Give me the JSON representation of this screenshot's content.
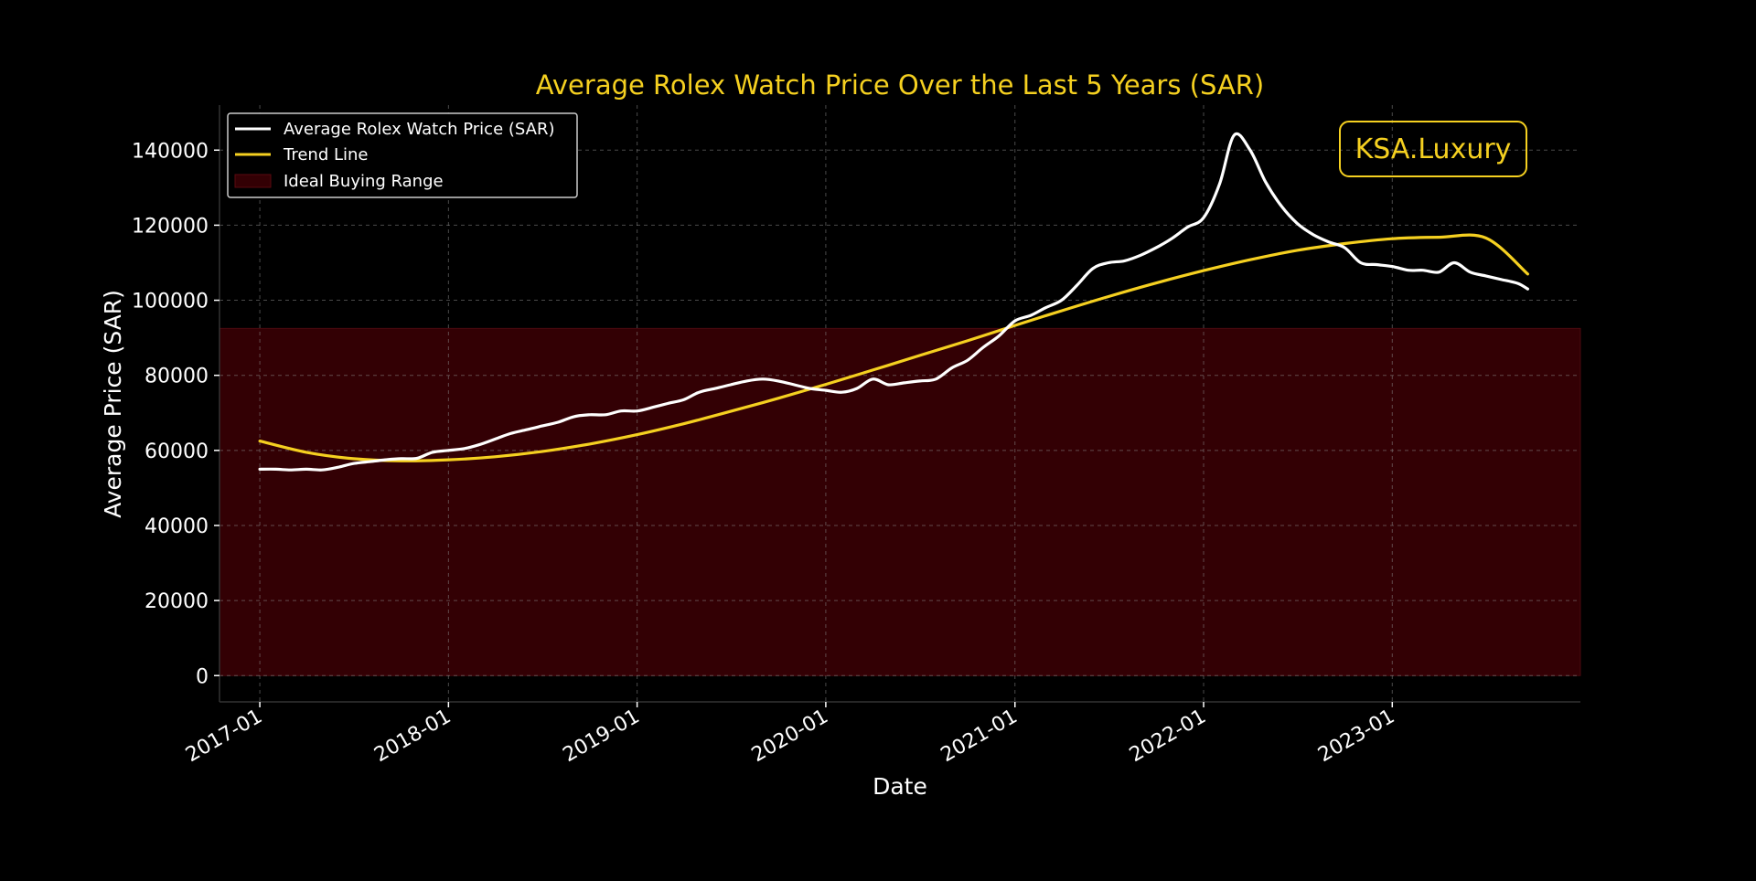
{
  "chart_data": {
    "type": "line",
    "title": "Average Rolex Watch Price Over the Last 5 Years (SAR)",
    "xlabel": "Date",
    "ylabel": "Average Price (SAR)",
    "xlim": [
      "2016-10-15",
      "2023-12-31"
    ],
    "ylim": [
      -7000,
      152000
    ],
    "x_ticks": [
      "2017-01",
      "2018-01",
      "2019-01",
      "2020-01",
      "2021-01",
      "2022-01",
      "2023-01"
    ],
    "y_ticks": [
      0,
      20000,
      40000,
      60000,
      80000,
      100000,
      120000,
      140000
    ],
    "grid": true,
    "legend_position": "top-left",
    "watermark": "KSA.Luxury",
    "colors": {
      "background": "#000000",
      "title": "#f5d020",
      "price_line": "#ffffff",
      "trend_line": "#f5d020",
      "range_fill": "#330004",
      "text": "#ffffff",
      "grid": "#888888"
    },
    "ideal_buying_range": {
      "name": "Ideal Buying Range",
      "ymin": 0,
      "ymax": 92500
    },
    "series": [
      {
        "name": "Average Rolex Watch Price (SAR)",
        "role": "price",
        "points": [
          [
            "2017-01-01",
            55000
          ],
          [
            "2017-02-01",
            55000
          ],
          [
            "2017-03-01",
            54800
          ],
          [
            "2017-04-01",
            55000
          ],
          [
            "2017-05-01",
            54800
          ],
          [
            "2017-06-01",
            55500
          ],
          [
            "2017-07-01",
            56500
          ],
          [
            "2017-08-01",
            57000
          ],
          [
            "2017-09-01",
            57500
          ],
          [
            "2017-10-01",
            57800
          ],
          [
            "2017-11-01",
            57900
          ],
          [
            "2017-12-01",
            59500
          ],
          [
            "2018-01-01",
            60000
          ],
          [
            "2018-02-01",
            60500
          ],
          [
            "2018-03-01",
            61500
          ],
          [
            "2018-04-01",
            63000
          ],
          [
            "2018-05-01",
            64500
          ],
          [
            "2018-06-01",
            65500
          ],
          [
            "2018-07-01",
            66500
          ],
          [
            "2018-08-01",
            67500
          ],
          [
            "2018-09-01",
            69000
          ],
          [
            "2018-10-01",
            69500
          ],
          [
            "2018-11-01",
            69500
          ],
          [
            "2018-12-01",
            70500
          ],
          [
            "2019-01-01",
            70500
          ],
          [
            "2019-02-01",
            71500
          ],
          [
            "2019-03-01",
            72500
          ],
          [
            "2019-04-01",
            73500
          ],
          [
            "2019-05-01",
            75500
          ],
          [
            "2019-06-01",
            76500
          ],
          [
            "2019-07-01",
            77500
          ],
          [
            "2019-08-01",
            78500
          ],
          [
            "2019-09-01",
            79000
          ],
          [
            "2019-10-01",
            78500
          ],
          [
            "2019-11-01",
            77500
          ],
          [
            "2019-12-01",
            76500
          ],
          [
            "2020-01-01",
            76000
          ],
          [
            "2020-02-01",
            75500
          ],
          [
            "2020-03-01",
            76500
          ],
          [
            "2020-04-01",
            79000
          ],
          [
            "2020-05-01",
            77500
          ],
          [
            "2020-06-01",
            78000
          ],
          [
            "2020-07-01",
            78500
          ],
          [
            "2020-08-01",
            79000
          ],
          [
            "2020-09-01",
            82000
          ],
          [
            "2020-10-01",
            84000
          ],
          [
            "2020-11-01",
            87500
          ],
          [
            "2020-12-01",
            90500
          ],
          [
            "2021-01-01",
            94500
          ],
          [
            "2021-02-01",
            96000
          ],
          [
            "2021-03-01",
            98000
          ],
          [
            "2021-04-01",
            100000
          ],
          [
            "2021-05-01",
            104000
          ],
          [
            "2021-06-01",
            108500
          ],
          [
            "2021-07-01",
            110000
          ],
          [
            "2021-08-01",
            110500
          ],
          [
            "2021-09-01",
            112000
          ],
          [
            "2021-10-01",
            114000
          ],
          [
            "2021-11-01",
            116500
          ],
          [
            "2021-12-01",
            119500
          ],
          [
            "2022-01-01",
            122000
          ],
          [
            "2022-02-01",
            131000
          ],
          [
            "2022-03-01",
            144000
          ],
          [
            "2022-04-01",
            140000
          ],
          [
            "2022-05-01",
            131500
          ],
          [
            "2022-06-01",
            125000
          ],
          [
            "2022-07-01",
            120500
          ],
          [
            "2022-08-01",
            117500
          ],
          [
            "2022-09-01",
            115500
          ],
          [
            "2022-10-01",
            114000
          ],
          [
            "2022-11-01",
            110000
          ],
          [
            "2022-12-01",
            109500
          ],
          [
            "2023-01-01",
            109000
          ],
          [
            "2023-02-01",
            108000
          ],
          [
            "2023-03-01",
            108000
          ],
          [
            "2023-04-01",
            107500
          ],
          [
            "2023-05-01",
            110000
          ],
          [
            "2023-06-01",
            107500
          ],
          [
            "2023-07-01",
            106500
          ],
          [
            "2023-08-01",
            105500
          ],
          [
            "2023-09-01",
            104500
          ],
          [
            "2023-09-20",
            103000
          ]
        ]
      },
      {
        "name": "Trend Line",
        "role": "trend",
        "points": [
          [
            "2017-01-01",
            62500
          ],
          [
            "2017-04-01",
            59500
          ],
          [
            "2017-07-01",
            57800
          ],
          [
            "2017-10-01",
            57200
          ],
          [
            "2018-01-01",
            57500
          ],
          [
            "2018-04-01",
            58300
          ],
          [
            "2018-07-01",
            59700
          ],
          [
            "2018-10-01",
            61700
          ],
          [
            "2019-01-01",
            64200
          ],
          [
            "2019-04-01",
            67100
          ],
          [
            "2019-07-01",
            70400
          ],
          [
            "2019-10-01",
            73900
          ],
          [
            "2020-01-01",
            77600
          ],
          [
            "2020-04-01",
            81400
          ],
          [
            "2020-07-01",
            85300
          ],
          [
            "2020-10-01",
            89200
          ],
          [
            "2021-01-01",
            93300
          ],
          [
            "2021-04-01",
            97200
          ],
          [
            "2021-07-01",
            101000
          ],
          [
            "2021-10-01",
            104600
          ],
          [
            "2022-01-01",
            107900
          ],
          [
            "2022-04-01",
            110800
          ],
          [
            "2022-07-01",
            113300
          ],
          [
            "2022-10-01",
            115100
          ],
          [
            "2023-01-01",
            116400
          ],
          [
            "2023-04-01",
            116800
          ],
          [
            "2023-07-01",
            116600
          ],
          [
            "2023-09-20",
            107000
          ]
        ]
      }
    ]
  }
}
